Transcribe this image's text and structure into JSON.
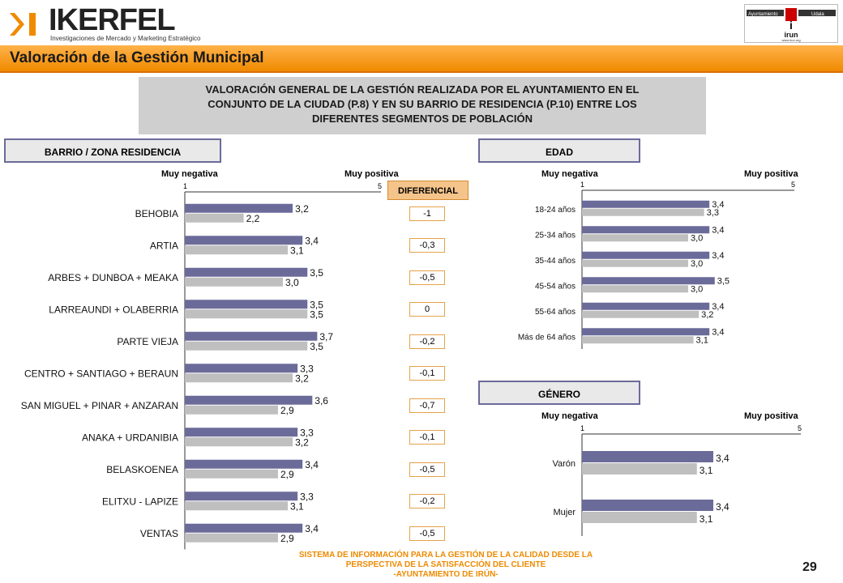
{
  "header": {
    "logo_word": "IKERFEL",
    "logo_tagline": "Investigaciones de Mercado y Marketing Estratégico",
    "partner_logo_top_left": "Ayuntamiento",
    "partner_logo_top_right": "Udala",
    "partner_logo_name": "irun",
    "partner_logo_url": "www.irun.org"
  },
  "title": "Valoración de la Gestión Municipal",
  "subtitle_lines": [
    "VALORACIÓN GENERAL DE LA GESTIÓN REALIZADA POR EL AYUNTAMIENTO EN EL",
    "CONJUNTO DE LA CIUDAD (P.8) Y EN SU BARRIO DE RESIDENCIA (P.10) ENTRE LOS",
    "DIFERENTES SEGMENTOS DE POBLACIÓN"
  ],
  "sections": {
    "barrio": "BARRIO / ZONA RESIDENCIA",
    "edad": "EDAD",
    "genero": "GÉNERO"
  },
  "scale": {
    "low": "Muy negativa",
    "high": "Muy positiva",
    "min_tick": "1",
    "max_tick": "5"
  },
  "diferencial": {
    "header": "DIFERENCIAL",
    "values": [
      "-1",
      "-0,3",
      "-0,5",
      "0",
      "-0,2",
      "-0,1",
      "-0,7",
      "-0,1",
      "-0,5",
      "-0,2",
      "-0,5"
    ]
  },
  "colors": {
    "series_a": "#6b6b9a",
    "series_b": "#bfbfbf",
    "accent": "#f08a00"
  },
  "chart_data": [
    {
      "type": "bar",
      "orientation": "horizontal",
      "section": "BARRIO / ZONA RESIDENCIA",
      "xlim": [
        1,
        5
      ],
      "categories": [
        "BEHOBIA",
        "ARTIA",
        "ARBES + DUNBOA + MEAKA",
        "LARREAUNDI + OLABERRIA",
        "PARTE VIEJA",
        "CENTRO + SANTIAGO + BERAUN",
        "SAN MIGUEL + PINAR + ANZARAN",
        "ANAKA + URDANIBIA",
        "BELASKOENEA",
        "ELITXU - LAPIZE",
        "VENTAS"
      ],
      "series": [
        {
          "values": [
            3.2,
            3.4,
            3.5,
            3.5,
            3.7,
            3.3,
            3.6,
            3.3,
            3.4,
            3.3,
            3.4
          ],
          "labels": [
            "3,2",
            "3,4",
            "3,5",
            "3,5",
            "3,7",
            "3,3",
            "3,6",
            "3,3",
            "3,4",
            "3,3",
            "3,4"
          ]
        },
        {
          "values": [
            2.2,
            3.1,
            3.0,
            3.5,
            3.5,
            3.2,
            2.9,
            3.2,
            2.9,
            3.1,
            2.9
          ],
          "labels": [
            "2,2",
            "3,1",
            "3,0",
            "3,5",
            "3,5",
            "3,2",
            "2,9",
            "3,2",
            "2,9",
            "3,1",
            "2,9"
          ]
        }
      ]
    },
    {
      "type": "bar",
      "orientation": "horizontal",
      "section": "EDAD",
      "xlim": [
        1,
        5
      ],
      "categories": [
        "18-24 años",
        "25-34 años",
        "35-44 años",
        "45-54 años",
        "55-64 años",
        "Más de 64 años"
      ],
      "series": [
        {
          "values": [
            3.4,
            3.4,
            3.4,
            3.5,
            3.4,
            3.4
          ],
          "labels": [
            "3,4",
            "3,4",
            "3,4",
            "3,5",
            "3,4",
            "3,4"
          ]
        },
        {
          "values": [
            3.3,
            3.0,
            3.0,
            3.0,
            3.2,
            3.1
          ],
          "labels": [
            "3,3",
            "3,0",
            "3,0",
            "3,0",
            "3,2",
            "3,1"
          ]
        }
      ]
    },
    {
      "type": "bar",
      "orientation": "horizontal",
      "section": "GÉNERO",
      "xlim": [
        1,
        5
      ],
      "categories": [
        "Varón",
        "Mujer"
      ],
      "series": [
        {
          "values": [
            3.4,
            3.4
          ],
          "labels": [
            "3,4",
            "3,4"
          ]
        },
        {
          "values": [
            3.1,
            3.1
          ],
          "labels": [
            "3,1",
            "3,1"
          ]
        }
      ]
    }
  ],
  "footer": {
    "lines": [
      "SISTEMA DE INFORMACIÓN PARA LA GESTIÓN DE LA CALIDAD DESDE LA",
      "PERSPECTIVA DE LA SATISFACCIÓN DEL CLIENTE",
      "-AYUNTAMIENTO DE IRÚN-"
    ],
    "page_number": "29"
  }
}
